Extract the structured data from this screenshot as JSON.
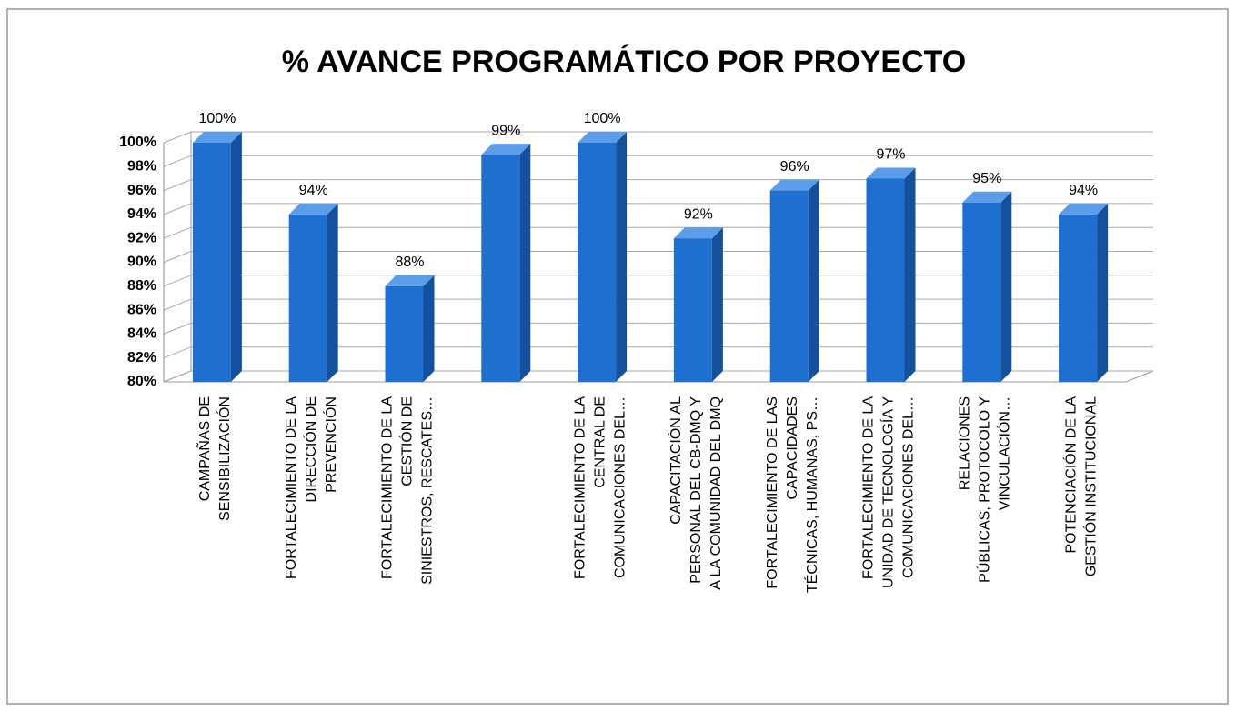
{
  "chart_data": {
    "type": "bar3d",
    "title": "% AVANCE PROGRAMÁTICO POR PROYECTO",
    "categories": [
      [
        "CAMPAÑAS DE",
        "SENSIBILIZACIÓN"
      ],
      [
        "FORTALECIMIENTO DE LA",
        "DIRECCIÓN DE",
        "PREVENCIÓN"
      ],
      [
        "FORTALECIMIENTO DE LA",
        "GESTIÓN DE",
        "SINIESTROS, RESCATES…"
      ],
      null,
      [
        "FORTALECIMIENTO DE LA",
        "CENTRAL DE",
        "COMUNICACIONES DEL…"
      ],
      [
        "CAPACITACIÓN AL",
        "PERSONAL DEL CB-DMQ Y",
        "A LA COMUNIDAD DEL DMQ"
      ],
      [
        "FORTALECIMIENTO DE LAS",
        "CAPACIDADES",
        "TÉCNICAS, HUMANAS, PS…"
      ],
      [
        "FORTALECIMIENTO DE LA",
        "UNIDAD DE TECNOLOGÍA Y",
        "COMUNICACIONES DEL…"
      ],
      [
        "RELACIONES",
        "PÚBLICAS, PROTOCOLO Y",
        "VINCULACIÓN…"
      ],
      [
        "POTENCIACIÓN DE LA",
        "GESTIÓN INSTITUCIONAL"
      ]
    ],
    "values": [
      100,
      94,
      88,
      99,
      100,
      92,
      96,
      97,
      95,
      94
    ],
    "value_labels": [
      "100%",
      "94%",
      "88%",
      "99%",
      "100%",
      "92%",
      "96%",
      "97%",
      "95%",
      "94%"
    ],
    "color": "#1f6fd0",
    "ylim": [
      80,
      100
    ],
    "yticks": [
      {
        "value": 80,
        "label": "80%"
      },
      {
        "value": 82,
        "label": "82%"
      },
      {
        "value": 84,
        "label": "84%"
      },
      {
        "value": 86,
        "label": "86%"
      },
      {
        "value": 88,
        "label": "88%"
      },
      {
        "value": 90,
        "label": "90%"
      },
      {
        "value": 92,
        "label": "92%"
      },
      {
        "value": 94,
        "label": "94%"
      },
      {
        "value": 96,
        "label": "96%"
      },
      {
        "value": 98,
        "label": "98%"
      },
      {
        "value": 100,
        "label": "100%"
      }
    ],
    "grid": true
  }
}
